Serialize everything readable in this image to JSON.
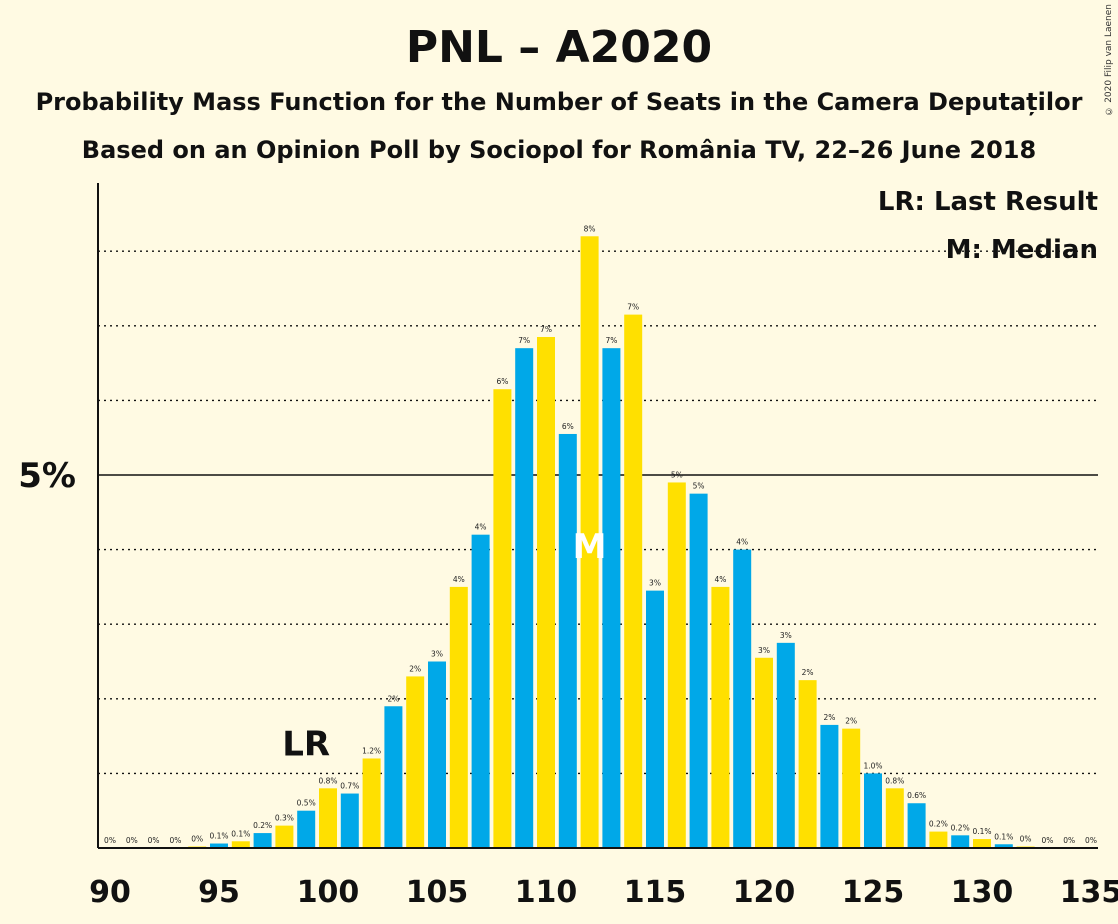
{
  "title": "PNL – A2020",
  "subtitle1": "Probability Mass Function for the Number of Seats in the Camera Deputaților",
  "subtitle2": "Based on an Opinion Poll by Sociopol for România TV, 22–26 June 2018",
  "copyright": "© 2020 Filip van Laenen",
  "legend": {
    "lr": "LR: Last Result",
    "median": "M: Median"
  },
  "colors": {
    "background": "#fffae3",
    "blue": "#00a8e8",
    "yellow": "#ffe000",
    "axis": "#111111"
  },
  "chart_data": {
    "type": "bar",
    "x": [
      90,
      91,
      92,
      93,
      94,
      95,
      96,
      97,
      98,
      99,
      100,
      101,
      102,
      103,
      104,
      105,
      106,
      107,
      108,
      109,
      110,
      111,
      112,
      113,
      114,
      115,
      116,
      117,
      118,
      119,
      120,
      121,
      122,
      123,
      124,
      125,
      126,
      127,
      128,
      129,
      130,
      131,
      132,
      133,
      134,
      135
    ],
    "values": [
      0,
      0,
      0,
      0,
      0.02,
      0.06,
      0.09,
      0.2,
      0.3,
      0.5,
      0.8,
      0.73,
      1.2,
      1.9,
      2.3,
      2.5,
      3.5,
      4.2,
      6.15,
      6.7,
      6.85,
      5.55,
      8.2,
      6.7,
      7.15,
      3.45,
      4.9,
      4.75,
      3.5,
      4.0,
      2.55,
      2.75,
      2.25,
      1.65,
      1.6,
      1.0,
      0.8,
      0.6,
      0.22,
      0.17,
      0.12,
      0.05,
      0.02,
      0,
      0,
      0
    ],
    "labels": [
      "0%",
      "0%",
      "0%",
      "0%",
      "0%",
      "0.1%",
      "0.1%",
      "0.2%",
      "0.3%",
      "0.5%",
      "0.8%",
      "0.7%",
      "1.2%",
      "2%",
      "2%",
      "3%",
      "4%",
      "4%",
      "6%",
      "7%",
      "7%",
      "6%",
      "8%",
      "7%",
      "7%",
      "3%",
      "5%",
      "5%",
      "4%",
      "4%",
      "3%",
      "3%",
      "2%",
      "2%",
      "2%",
      "1.0%",
      "0.8%",
      "0.6%",
      "0.2%",
      "0.2%",
      "0.1%",
      "0.1%",
      "0%",
      "0%",
      "0%",
      "0%"
    ],
    "xticks": [
      90,
      95,
      100,
      105,
      110,
      115,
      120,
      125,
      130,
      135
    ],
    "ytick_label": "5%",
    "ytick_value": 5,
    "gridlines": [
      1,
      2,
      3,
      4,
      6,
      7,
      8
    ],
    "ylim": [
      0,
      8.9
    ],
    "last_result": 99,
    "last_result_label": "LR",
    "median": 112,
    "median_label": "M"
  }
}
